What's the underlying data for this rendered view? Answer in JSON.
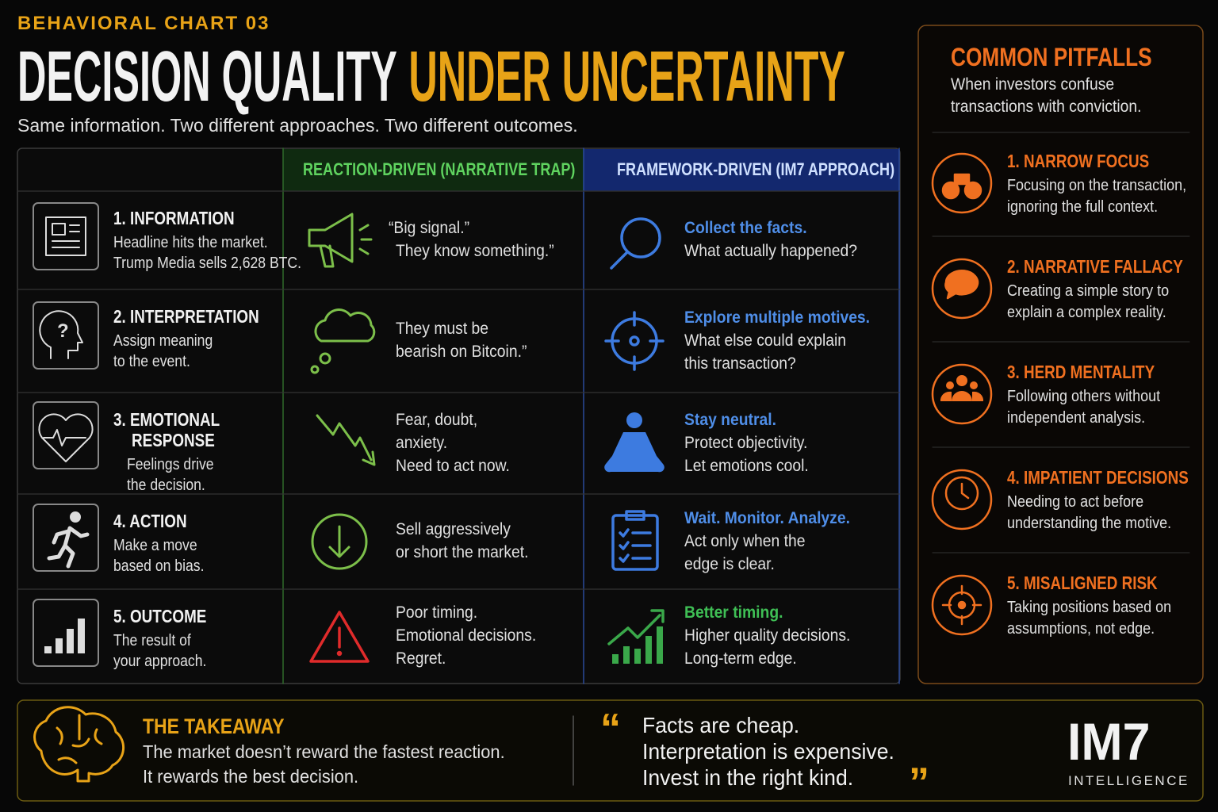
{
  "header": {
    "kicker": "BEHAVIORAL CHART 03",
    "title_white": "DECISION QUALITY",
    "title_accent": "UNDER UNCERTAINTY",
    "subtitle": "Same information. Two different approaches. Two different outcomes."
  },
  "table": {
    "columns": [
      "REACTION-DRIVEN (NARRATIVE TRAP)",
      "FRAMEWORK-DRIVEN (IM7 APPROACH)"
    ],
    "rows": [
      {
        "stage": {
          "title": [
            "1. INFORMATION"
          ],
          "lines": [
            "Headline hits the market.",
            "Trump Media sells 2,628 BTC."
          ]
        },
        "reaction": [
          "“Big signal.”",
          "They know something.”"
        ],
        "framework": {
          "heading": "Collect the facts.",
          "lines": [
            "What actually happened?"
          ]
        }
      },
      {
        "stage": {
          "title": [
            "2. INTERPRETATION"
          ],
          "lines": [
            "Assign meaning",
            "to the event."
          ]
        },
        "reaction": [
          "They must be",
          "bearish on Bitcoin.”"
        ],
        "framework": {
          "heading": "Explore multiple motives.",
          "lines": [
            "What else could explain",
            "this transaction?"
          ]
        }
      },
      {
        "stage": {
          "title": [
            "3. EMOTIONAL",
            "RESPONSE"
          ],
          "lines": [
            "Feelings drive",
            "the decision."
          ]
        },
        "reaction": [
          "Fear, doubt,",
          "anxiety.",
          "Need to act now."
        ],
        "framework": {
          "heading": "Stay neutral.",
          "lines": [
            "Protect objectivity.",
            "Let emotions cool."
          ]
        }
      },
      {
        "stage": {
          "title": [
            "4. ACTION"
          ],
          "lines": [
            "Make a move",
            "based on bias."
          ]
        },
        "reaction": [
          "Sell aggressively",
          "or short the market."
        ],
        "framework": {
          "heading": "Wait. Monitor. Analyze.",
          "lines": [
            "Act only when the",
            "edge is clear."
          ]
        }
      },
      {
        "stage": {
          "title": [
            "5. OUTCOME"
          ],
          "lines": [
            "The result of",
            "your approach."
          ]
        },
        "reaction": [
          "Poor timing.",
          "Emotional decisions.",
          "Regret."
        ],
        "framework": {
          "heading": "Better timing.",
          "lines": [
            "Higher quality decisions.",
            "Long-term edge."
          ]
        }
      }
    ]
  },
  "sidebar": {
    "title": "COMMON PITFALLS",
    "intro": [
      "When investors confuse",
      "transactions with conviction."
    ],
    "items": [
      {
        "title": "1. NARROW FOCUS",
        "lines": [
          "Focusing on the transaction,",
          "ignoring the full context."
        ]
      },
      {
        "title": "2. NARRATIVE FALLACY",
        "lines": [
          "Creating a simple story to",
          "explain a complex reality."
        ]
      },
      {
        "title": "3. HERD MENTALITY",
        "lines": [
          "Following others without",
          "independent analysis."
        ]
      },
      {
        "title": "4. IMPATIENT DECISIONS",
        "lines": [
          "Needing to act before",
          "understanding the motive."
        ]
      },
      {
        "title": "5. MISALIGNED RISK",
        "lines": [
          "Taking positions based on",
          "assumptions, not edge."
        ]
      }
    ]
  },
  "footer": {
    "takeaway_title": "THE TAKEAWAY",
    "takeaway": [
      "The market doesn’t reward the fastest reaction.",
      "It rewards the best decision."
    ],
    "open_mark": "“",
    "close_mark": "”",
    "quote": [
      "Facts are cheap.",
      "Interpretation is expensive.",
      "Invest in the right kind."
    ],
    "brand": "IM7",
    "brand_sub": "INTELLIGENCE"
  }
}
